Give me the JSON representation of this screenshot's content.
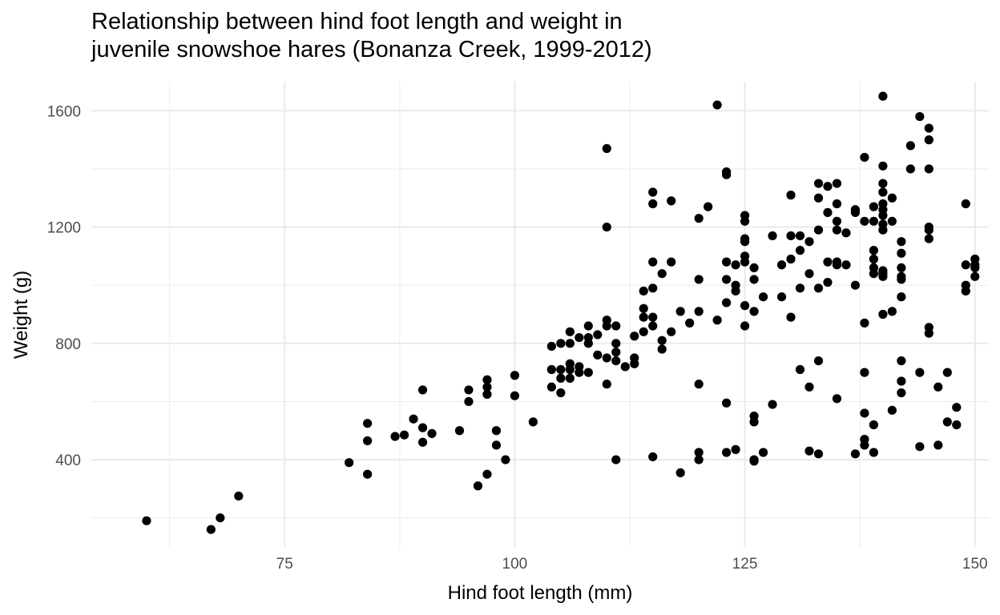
{
  "chart_data": {
    "type": "scatter",
    "title": "Relationship between hind foot length and weight in\njuvenile snowshoe hares (Bonanza Creek, 1999-2012)",
    "xlabel": "Hind foot length (mm)",
    "ylabel": "Weight (g)",
    "xlim": [
      54,
      151.5
    ],
    "ylim": [
      100,
      1700
    ],
    "x_ticks": [
      75,
      100,
      125,
      150
    ],
    "y_ticks": [
      400,
      800,
      1200,
      1600
    ],
    "x_minor": [
      62.5,
      87.5,
      112.5,
      137.5
    ],
    "y_minor": [
      200,
      600,
      1000,
      1400
    ],
    "grid": true,
    "colors": {
      "point": "#000000",
      "grid": "#ebebeb",
      "text": "#4d4d4d"
    },
    "points": [
      [
        60,
        190
      ],
      [
        67,
        160
      ],
      [
        68,
        200
      ],
      [
        70,
        275
      ],
      [
        82,
        390
      ],
      [
        84,
        350
      ],
      [
        84,
        465
      ],
      [
        84,
        525
      ],
      [
        87,
        480
      ],
      [
        88,
        485
      ],
      [
        89,
        540
      ],
      [
        90,
        640
      ],
      [
        90,
        510
      ],
      [
        90,
        460
      ],
      [
        91,
        490
      ],
      [
        94,
        500
      ],
      [
        95,
        640
      ],
      [
        95,
        600
      ],
      [
        96,
        310
      ],
      [
        97,
        350
      ],
      [
        97,
        625
      ],
      [
        97,
        650
      ],
      [
        97,
        675
      ],
      [
        98,
        500
      ],
      [
        98,
        450
      ],
      [
        99,
        400
      ],
      [
        100,
        690
      ],
      [
        100,
        620
      ],
      [
        102,
        530
      ],
      [
        104,
        790
      ],
      [
        104,
        710
      ],
      [
        104,
        650
      ],
      [
        105,
        800
      ],
      [
        105,
        710
      ],
      [
        105,
        680
      ],
      [
        105,
        630
      ],
      [
        106,
        840
      ],
      [
        106,
        800
      ],
      [
        106,
        730
      ],
      [
        106,
        710
      ],
      [
        106,
        680
      ],
      [
        107,
        720
      ],
      [
        107,
        820
      ],
      [
        107,
        700
      ],
      [
        108,
        860
      ],
      [
        108,
        820
      ],
      [
        108,
        800
      ],
      [
        108,
        700
      ],
      [
        109,
        830
      ],
      [
        109,
        760
      ],
      [
        110,
        1470
      ],
      [
        110,
        1200
      ],
      [
        110,
        880
      ],
      [
        110,
        860
      ],
      [
        110,
        750
      ],
      [
        110,
        660
      ],
      [
        111,
        860
      ],
      [
        111,
        800
      ],
      [
        111,
        770
      ],
      [
        111,
        740
      ],
      [
        111,
        400
      ],
      [
        112,
        720
      ],
      [
        113,
        750
      ],
      [
        113,
        730
      ],
      [
        113,
        825
      ],
      [
        114,
        980
      ],
      [
        114,
        920
      ],
      [
        114,
        890
      ],
      [
        114,
        840
      ],
      [
        115,
        1320
      ],
      [
        115,
        1280
      ],
      [
        115,
        1080
      ],
      [
        115,
        990
      ],
      [
        115,
        890
      ],
      [
        115,
        860
      ],
      [
        115,
        410
      ],
      [
        116,
        1040
      ],
      [
        116,
        810
      ],
      [
        116,
        780
      ],
      [
        117,
        1290
      ],
      [
        117,
        1080
      ],
      [
        117,
        840
      ],
      [
        118,
        910
      ],
      [
        118,
        355
      ],
      [
        119,
        870
      ],
      [
        120,
        1230
      ],
      [
        120,
        1020
      ],
      [
        120,
        910
      ],
      [
        120,
        660
      ],
      [
        120,
        425
      ],
      [
        120,
        400
      ],
      [
        121,
        1270
      ],
      [
        122,
        1620
      ],
      [
        122,
        880
      ],
      [
        123,
        1390
      ],
      [
        123,
        1380
      ],
      [
        123,
        1080
      ],
      [
        123,
        1020
      ],
      [
        123,
        940
      ],
      [
        123,
        595
      ],
      [
        123,
        425
      ],
      [
        124,
        1070
      ],
      [
        124,
        1000
      ],
      [
        124,
        980
      ],
      [
        124,
        435
      ],
      [
        125,
        1240
      ],
      [
        125,
        1220
      ],
      [
        125,
        1160
      ],
      [
        125,
        1150
      ],
      [
        125,
        1100
      ],
      [
        125,
        1080
      ],
      [
        125,
        930
      ],
      [
        125,
        860
      ],
      [
        126,
        1060
      ],
      [
        126,
        1020
      ],
      [
        126,
        910
      ],
      [
        126,
        550
      ],
      [
        126,
        530
      ],
      [
        126,
        400
      ],
      [
        126,
        395
      ],
      [
        127,
        960
      ],
      [
        127,
        425
      ],
      [
        128,
        1170
      ],
      [
        128,
        590
      ],
      [
        129,
        1070
      ],
      [
        129,
        960
      ],
      [
        130,
        1310
      ],
      [
        130,
        1170
      ],
      [
        130,
        1090
      ],
      [
        130,
        890
      ],
      [
        131,
        1170
      ],
      [
        131,
        1120
      ],
      [
        131,
        990
      ],
      [
        131,
        710
      ],
      [
        132,
        1150
      ],
      [
        132,
        1040
      ],
      [
        132,
        650
      ],
      [
        132,
        430
      ],
      [
        133,
        1350
      ],
      [
        133,
        1300
      ],
      [
        133,
        1190
      ],
      [
        133,
        990
      ],
      [
        133,
        740
      ],
      [
        133,
        420
      ],
      [
        134,
        1340
      ],
      [
        134,
        1250
      ],
      [
        134,
        1080
      ],
      [
        134,
        1010
      ],
      [
        135,
        1350
      ],
      [
        135,
        1280
      ],
      [
        135,
        1220
      ],
      [
        135,
        1190
      ],
      [
        135,
        1080
      ],
      [
        135,
        1070
      ],
      [
        135,
        610
      ],
      [
        136,
        1180
      ],
      [
        136,
        1070
      ],
      [
        137,
        1260
      ],
      [
        137,
        1250
      ],
      [
        137,
        1000
      ],
      [
        137,
        420
      ],
      [
        138,
        1440
      ],
      [
        138,
        1220
      ],
      [
        138,
        870
      ],
      [
        138,
        700
      ],
      [
        138,
        560
      ],
      [
        138,
        470
      ],
      [
        138,
        450
      ],
      [
        139,
        1220
      ],
      [
        139,
        1270
      ],
      [
        139,
        1120
      ],
      [
        139,
        1090
      ],
      [
        139,
        1060
      ],
      [
        139,
        1040
      ],
      [
        139,
        520
      ],
      [
        139,
        425
      ],
      [
        140,
        1650
      ],
      [
        140,
        1410
      ],
      [
        140,
        1350
      ],
      [
        140,
        1320
      ],
      [
        140,
        1280
      ],
      [
        140,
        1260
      ],
      [
        140,
        1240
      ],
      [
        140,
        1210
      ],
      [
        140,
        1190
      ],
      [
        140,
        1050
      ],
      [
        140,
        1040
      ],
      [
        140,
        1030
      ],
      [
        140,
        900
      ],
      [
        141,
        1300
      ],
      [
        141,
        1220
      ],
      [
        141,
        910
      ],
      [
        141,
        570
      ],
      [
        142,
        1150
      ],
      [
        142,
        1110
      ],
      [
        142,
        1060
      ],
      [
        142,
        1030
      ],
      [
        142,
        1020
      ],
      [
        142,
        960
      ],
      [
        142,
        740
      ],
      [
        142,
        670
      ],
      [
        142,
        630
      ],
      [
        143,
        1480
      ],
      [
        143,
        1400
      ],
      [
        144,
        1580
      ],
      [
        144,
        700
      ],
      [
        144,
        445
      ],
      [
        145,
        1540
      ],
      [
        145,
        1500
      ],
      [
        145,
        1400
      ],
      [
        145,
        1200
      ],
      [
        145,
        1190
      ],
      [
        145,
        1160
      ],
      [
        145,
        855
      ],
      [
        145,
        835
      ],
      [
        146,
        650
      ],
      [
        146,
        450
      ],
      [
        147,
        700
      ],
      [
        147,
        530
      ],
      [
        148,
        580
      ],
      [
        148,
        520
      ],
      [
        149,
        1280
      ],
      [
        149,
        1070
      ],
      [
        149,
        1000
      ],
      [
        149,
        980
      ],
      [
        150,
        1090
      ],
      [
        150,
        1070
      ],
      [
        150,
        1060
      ],
      [
        150,
        1030
      ]
    ]
  }
}
